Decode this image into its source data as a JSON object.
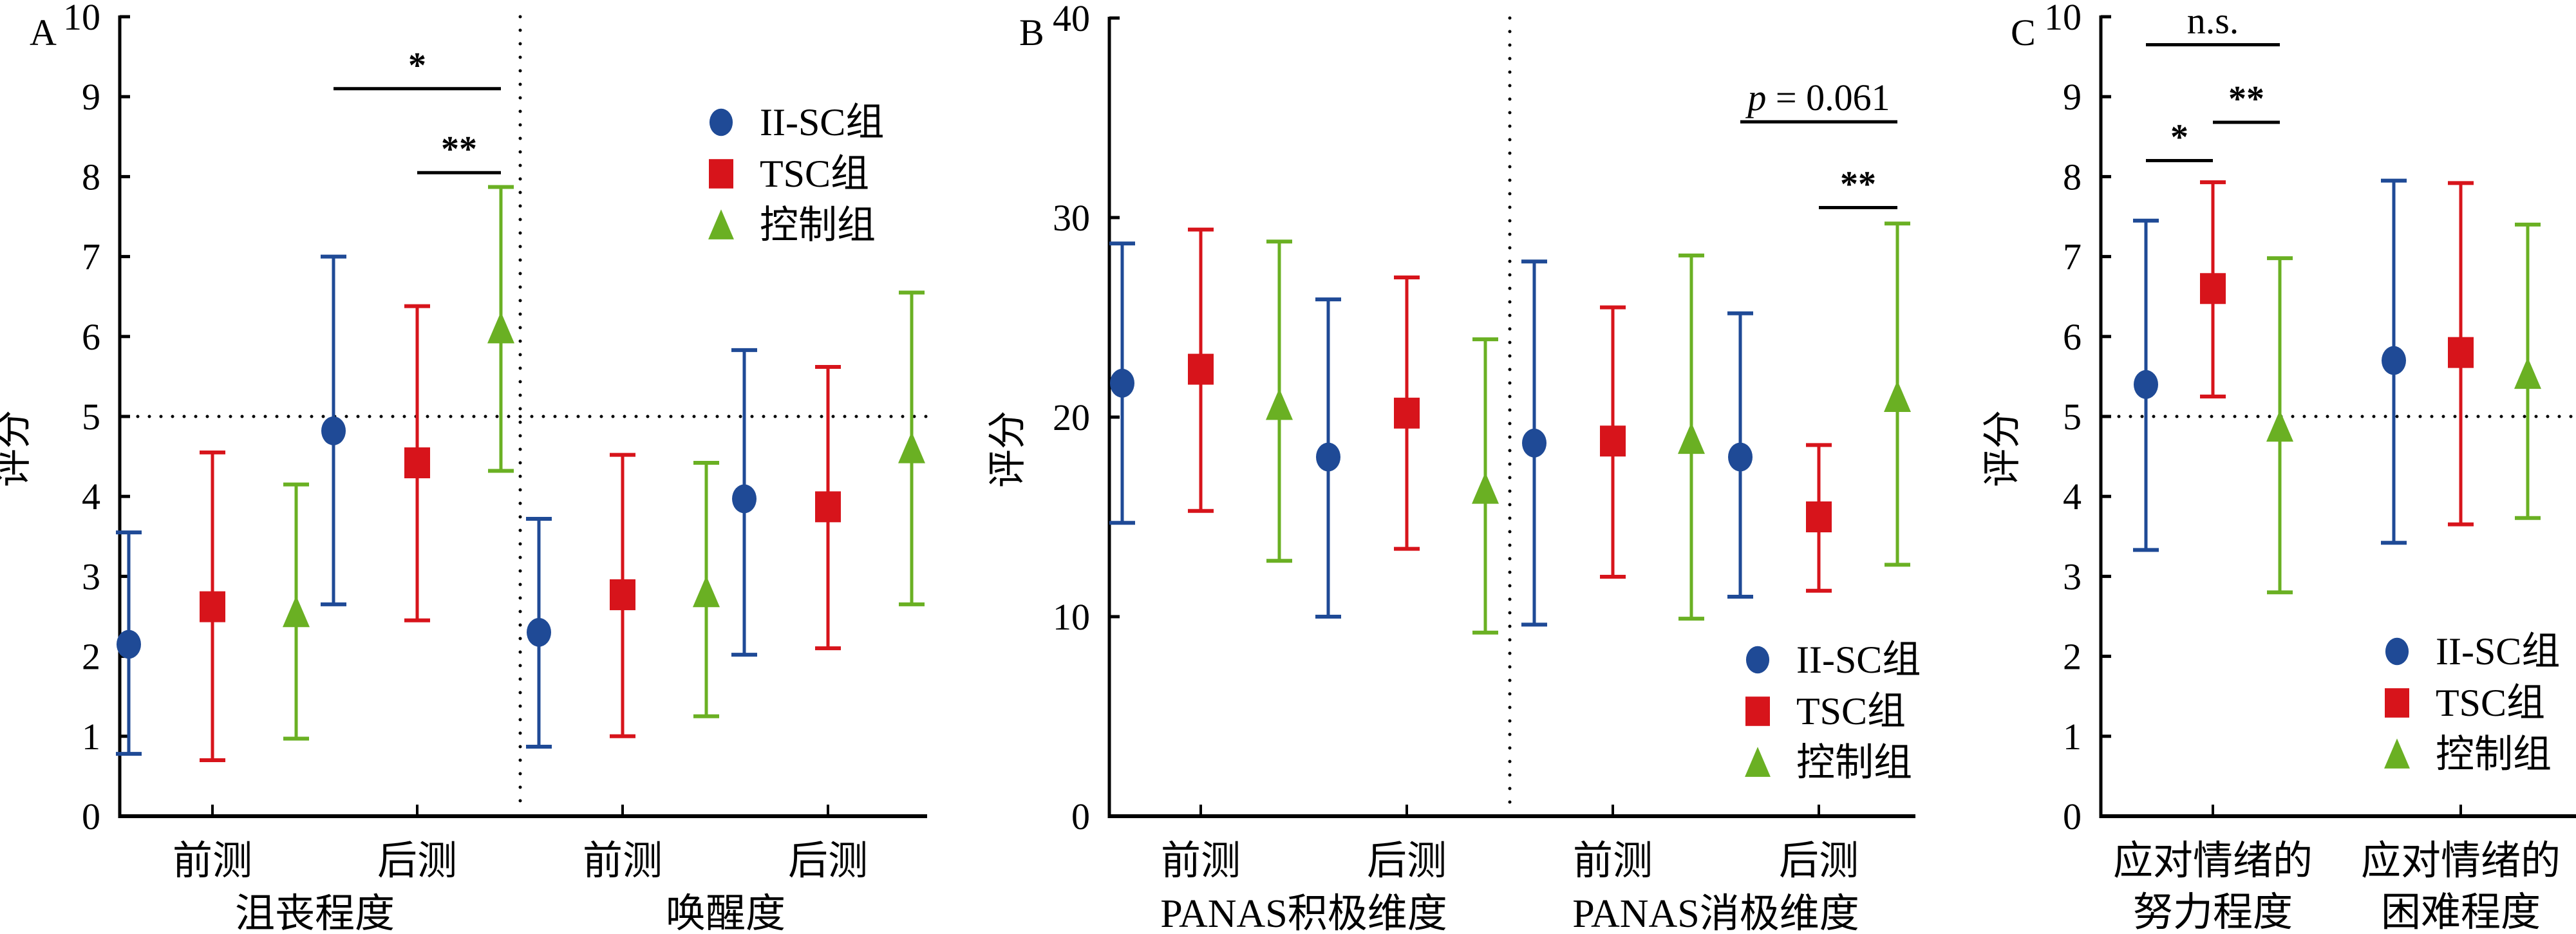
{
  "colors": {
    "II-SC": "#1f4a96",
    "TSC": "#d7141b",
    "control": "#6ab023",
    "axis": "#000000"
  },
  "series": [
    {
      "key": "II-SC",
      "label": "II-SC组",
      "marker": "circle"
    },
    {
      "key": "TSC",
      "label": "TSC组",
      "marker": "square"
    },
    {
      "key": "control",
      "label": "控制组",
      "marker": "triangle"
    }
  ],
  "chart_data": [
    {
      "panel": "A",
      "type": "scatter",
      "ylabel": "评分",
      "ylim": [
        0,
        10
      ],
      "yticks": [
        0,
        1,
        2,
        3,
        4,
        5,
        6,
        7,
        8,
        9,
        10
      ],
      "reference_line": 5,
      "legend_position": "top-right",
      "groups": [
        {
          "name": "沮丧程度",
          "categories": [
            "前测",
            "后测"
          ]
        },
        {
          "name": "唤醒度",
          "categories": [
            "前测",
            "后测"
          ]
        }
      ],
      "categories": [
        "前测",
        "后测",
        "前测",
        "后测"
      ],
      "series": [
        {
          "name": "II-SC组",
          "values": [
            2.15,
            4.82,
            2.3,
            3.97
          ],
          "lower": [
            0.78,
            2.65,
            0.87,
            2.02
          ],
          "upper": [
            3.55,
            7.0,
            3.72,
            5.83
          ]
        },
        {
          "name": "TSC组",
          "values": [
            2.62,
            4.42,
            2.77,
            3.87
          ],
          "lower": [
            0.7,
            2.45,
            1.0,
            2.1
          ],
          "upper": [
            4.55,
            6.38,
            4.52,
            5.62
          ]
        },
        {
          "name": "控制组",
          "values": [
            2.55,
            6.1,
            2.8,
            4.6
          ],
          "lower": [
            0.97,
            4.32,
            1.25,
            2.65
          ],
          "upper": [
            4.15,
            7.87,
            4.42,
            6.55
          ]
        }
      ],
      "annotations": [
        {
          "text": "*",
          "from_series": 0,
          "to_series": 2,
          "category": 1,
          "level": 9.1
        },
        {
          "text": "**",
          "from_series": 1,
          "to_series": 2,
          "category": 1,
          "level": 8.05
        }
      ]
    },
    {
      "panel": "B",
      "type": "scatter",
      "ylabel": "评分",
      "ylim": [
        0,
        40
      ],
      "yticks": [
        0,
        10,
        20,
        30,
        40
      ],
      "legend_position": "bottom-right",
      "groups": [
        {
          "name": "PANAS积极维度",
          "categories": [
            "前测",
            "后测"
          ]
        },
        {
          "name": "PANAS消极维度",
          "categories": [
            "前测",
            "后测"
          ]
        }
      ],
      "categories": [
        "前测",
        "后测",
        "前测",
        "后测"
      ],
      "series": [
        {
          "name": "II-SC组",
          "values": [
            21.7,
            18.0,
            18.7,
            18.0
          ],
          "lower": [
            14.7,
            10.0,
            9.6,
            11.0
          ],
          "upper": [
            28.7,
            25.9,
            27.8,
            25.2
          ]
        },
        {
          "name": "TSC组",
          "values": [
            22.4,
            20.2,
            18.8,
            15.0
          ],
          "lower": [
            15.3,
            13.4,
            12.0,
            11.3
          ],
          "upper": [
            29.4,
            27.0,
            25.5,
            18.6
          ]
        },
        {
          "name": "控制组",
          "values": [
            20.6,
            16.4,
            18.9,
            21.0
          ],
          "lower": [
            12.8,
            9.2,
            9.9,
            12.6
          ],
          "upper": [
            28.8,
            23.9,
            28.1,
            29.7
          ]
        }
      ],
      "annotations": [
        {
          "text": "p = 0.061",
          "from_series": 0,
          "to_series": 2,
          "category": 3,
          "level": 34.8
        },
        {
          "text": "**",
          "from_series": 1,
          "to_series": 2,
          "category": 3,
          "level": 30.5
        }
      ]
    },
    {
      "panel": "C",
      "type": "scatter",
      "ylabel": "评分",
      "ylim": [
        0,
        10
      ],
      "yticks": [
        0,
        1,
        2,
        3,
        4,
        5,
        6,
        7,
        8,
        9,
        10
      ],
      "reference_line": 5,
      "legend_position": "bottom-right",
      "categories": [
        "应对情绪的\n努力程度",
        "应对情绪的\n困难程度"
      ],
      "series": [
        {
          "name": "II-SC组",
          "values": [
            5.4,
            5.7
          ],
          "lower": [
            3.33,
            3.42
          ],
          "upper": [
            7.45,
            7.95
          ]
        },
        {
          "name": "TSC组",
          "values": [
            6.6,
            5.8
          ],
          "lower": [
            5.25,
            3.65
          ],
          "upper": [
            7.93,
            7.92
          ]
        },
        {
          "name": "控制组",
          "values": [
            4.87,
            5.53
          ],
          "lower": [
            2.8,
            3.73
          ],
          "upper": [
            6.98,
            7.4
          ]
        }
      ],
      "annotations": [
        {
          "text": "n.s.",
          "from_series": 0,
          "to_series": 2,
          "category": 0,
          "level": 9.65
        },
        {
          "text": "**",
          "from_series": 1,
          "to_series": 2,
          "category": 0,
          "level": 8.68
        },
        {
          "text": "*",
          "from_series": 0,
          "to_series": 1,
          "category": 0,
          "level": 8.2
        }
      ]
    }
  ]
}
